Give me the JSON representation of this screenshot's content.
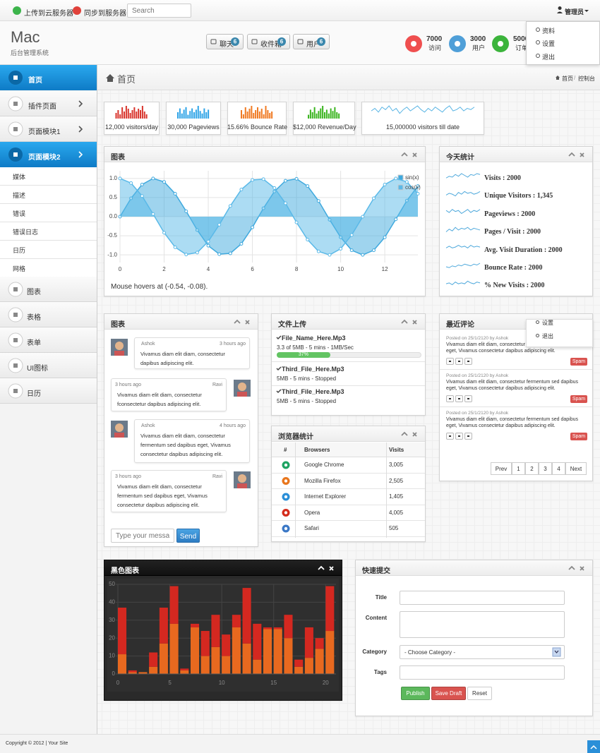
{
  "topbar": {
    "buttons": [
      "上传到云服务器",
      "同步到服务器"
    ],
    "search_placeholder": "Search",
    "user": "管理员"
  },
  "user_menu": [
    "资料",
    "设置",
    "退出"
  ],
  "header": {
    "logo": "Mac",
    "subtitle": "后台管理系统",
    "buttons": [
      {
        "label": "聊天",
        "badge": "6"
      },
      {
        "label": "收件箱",
        "badge": "6"
      },
      {
        "label": "用户",
        "badge": "6"
      }
    ],
    "stats": [
      {
        "value": "7000",
        "label": "访问",
        "color": "#ef4f4f"
      },
      {
        "value": "3000",
        "label": "用户",
        "color": "#4f9fd8"
      },
      {
        "value": "5000",
        "label": "订单",
        "color": "#3cb43c"
      }
    ]
  },
  "sidebar": {
    "main": [
      {
        "label": "首页",
        "active": true
      },
      {
        "label": "插件页面",
        "active": false
      },
      {
        "label": "页面模块1",
        "active": false
      },
      {
        "label": "页面模块2",
        "active": true
      }
    ],
    "submenu": [
      "媒体",
      "描述",
      "错误",
      "错误日志",
      "日历",
      "网格"
    ],
    "more": [
      "图表",
      "表格",
      "表单",
      "UI图标",
      "日历"
    ]
  },
  "page": {
    "title": "首页",
    "breadcrumb": [
      "首页",
      "控制台"
    ],
    "separator": "/"
  },
  "stat_boxes": [
    {
      "label": "12,000 visitors/day",
      "type": "bar",
      "color": "#d9362e",
      "values": [
        4,
        6,
        3,
        8,
        5,
        9,
        7,
        4,
        6,
        8,
        5,
        7,
        6,
        9,
        5,
        3
      ]
    },
    {
      "label": "30,000 Pageviews",
      "type": "bar",
      "color": "#2fa4e7",
      "values": [
        5,
        8,
        4,
        7,
        9,
        3,
        6,
        8,
        5,
        7,
        10,
        6,
        4,
        8,
        5,
        7
      ]
    },
    {
      "label": "15.66% Bounce Rate",
      "type": "bar",
      "color": "#f07b24",
      "values": [
        6,
        3,
        8,
        5,
        7,
        9,
        4,
        6,
        8,
        5,
        7,
        3,
        9,
        6,
        4,
        5
      ]
    },
    {
      "label": "$12,000 Revenue/Day",
      "type": "bar",
      "color": "#3cb521",
      "values": [
        3,
        7,
        5,
        9,
        4,
        6,
        8,
        10,
        5,
        7,
        4,
        8,
        6,
        9,
        5,
        4
      ]
    },
    {
      "label": "15,000000 visitors till date",
      "type": "line",
      "color": "#58b4e4",
      "values": [
        5,
        7,
        4,
        8,
        6,
        9,
        5,
        7,
        3,
        6,
        8,
        5,
        7,
        9,
        6,
        4,
        7,
        5,
        8,
        6,
        4,
        7,
        9,
        5,
        6,
        8,
        5,
        7,
        6,
        8
      ]
    }
  ],
  "today": {
    "title": "今天统计",
    "color": "#4fa9dc",
    "items": [
      {
        "label": "Visits : 2000",
        "values": [
          3,
          5,
          4,
          7,
          5,
          8,
          6,
          4,
          7,
          6,
          8,
          7
        ]
      },
      {
        "label": "Unique Visitors : 1,345",
        "values": [
          4,
          6,
          5,
          3,
          7,
          5,
          8,
          6,
          7,
          5,
          6,
          8
        ]
      },
      {
        "label": "Pageviews : 2000",
        "values": [
          6,
          4,
          7,
          5,
          6,
          3,
          5,
          7,
          4,
          6,
          5,
          7
        ]
      },
      {
        "label": "Pages / Visit : 2000",
        "values": [
          3,
          6,
          4,
          8,
          5,
          7,
          6,
          8,
          5,
          7,
          6,
          5
        ]
      },
      {
        "label": "Avg. Visit Duration : 2000",
        "values": [
          5,
          7,
          5,
          6,
          8,
          6,
          7,
          5,
          8,
          6,
          7,
          6
        ]
      },
      {
        "label": "Bounce Rate : 2000",
        "values": [
          4,
          3,
          5,
          4,
          6,
          5,
          7,
          6,
          5,
          7,
          6,
          8
        ]
      },
      {
        "label": "% New Visits : 2000",
        "values": [
          5,
          6,
          4,
          7,
          5,
          6,
          5,
          8,
          6,
          5,
          7,
          6
        ]
      }
    ]
  },
  "chat": {
    "title": "图表",
    "placeholder": "Type your message her",
    "send": "Send",
    "messages": [
      {
        "name": "Ashok",
        "time": "3 hours ago",
        "side": "left",
        "text": "Vivamus diam elit diam, consectetur dapibus adipiscing elit."
      },
      {
        "name": "Ravi",
        "time": "3 hours ago",
        "side": "right",
        "text": "Vivamus diam elit diam, consectetur fconsectetur dapibus adipiscing elit."
      },
      {
        "name": "Ashok",
        "time": "4 hours ago",
        "side": "left",
        "text": "Vivamus diam elit diam, consectetur fermentum sed dapibus eget, Vivamus consectetur dapibus adipiscing elit."
      },
      {
        "name": "Ravi",
        "time": "3 hours ago",
        "side": "right",
        "text": "Vivamus diam elit diam, consectetur fermentum sed dapibus eget, Vivamus consectetur dapibus adipiscing elit."
      }
    ]
  },
  "upload": {
    "title": "文件上传",
    "files": [
      {
        "name": "File_Name_Here.Mp3",
        "info": "3.3 of 5MB - 5 mins - 1MB/Sec",
        "progress": "37%"
      },
      {
        "name": "Third_File_Here.Mp3",
        "info": "5MB - 5 mins - Stopped"
      },
      {
        "name": "Third_File_Here.Mp3",
        "info": "5MB - 5 mins - Stopped"
      }
    ]
  },
  "browsers": {
    "title": "浏览器统计",
    "columns": [
      "#",
      "Browsers",
      "Visits"
    ],
    "rows": [
      [
        "Google Chrome",
        "3,005"
      ],
      [
        "Mozilla Firefox",
        "2,505"
      ],
      [
        "Internet Explorer",
        "1,405"
      ],
      [
        "Opera",
        "4,005"
      ],
      [
        "Safari",
        "505"
      ]
    ]
  },
  "comments": {
    "title": "最近评论",
    "menu": [
      "设置",
      "退出"
    ],
    "items": [
      {
        "meta": "Posted on 25/1/2120 by Ashok",
        "text": "Vivamus diam elit diam, consectetur fermentum sed dapibus eget, Vivamus consectetur dapibus adipiscing elit.",
        "flag": "Spam"
      },
      {
        "meta": "Posted on 25/1/2120 by Ashok",
        "text": "Vivamus diam elit diam, consectetur fermentum sed dapibus eget, Vivamus consectetur dapibus adipiscing elit.",
        "flag": "Spam"
      },
      {
        "meta": "Posted on 25/1/2120 by Ashok",
        "text": "Vivamus diam elit diam, consectetur fermentum sed dapibus eget, Vivamus consectetur dapibus adipiscing elit.",
        "flag": "Spam"
      }
    ],
    "pagination": [
      "Prev",
      "1",
      "2",
      "3",
      "4",
      "Next"
    ]
  },
  "form": {
    "title": "快速提交",
    "fields": [
      {
        "label": "Title",
        "kind": "input"
      },
      {
        "label": "Content",
        "kind": "textarea"
      },
      {
        "label": "Category",
        "kind": "select",
        "value": "- Choose Category -"
      },
      {
        "label": "Tags",
        "kind": "input"
      }
    ],
    "buttons": [
      {
        "label": "Publish",
        "color": "#5cb85c"
      },
      {
        "label": "Save Draft",
        "color": "#d9534f"
      },
      {
        "label": "Reset",
        "color": "#ffffff"
      }
    ]
  },
  "footer": {
    "text": "Copyright © 2012 | Your Site"
  },
  "chart_data": [
    {
      "type": "line",
      "title": "图表",
      "annotation": "Mouse hovers at (-0.54, -0.08).",
      "fill_to_zero": true,
      "legend": "ne",
      "grid": true,
      "x": [
        0,
        0.5,
        1,
        1.5,
        2,
        2.5,
        3,
        3.5,
        4,
        4.5,
        5,
        5.5,
        6,
        6.5,
        7,
        7.5,
        8,
        8.5,
        9,
        9.5,
        10,
        10.5,
        11,
        11.5,
        12,
        12.5,
        13,
        13.5
      ],
      "series": [
        {
          "name": "sin(x)",
          "color": "#3fa9de",
          "values": [
            0,
            0.48,
            0.84,
            1.0,
            0.91,
            0.6,
            0.14,
            -0.35,
            -0.76,
            -0.98,
            -0.96,
            -0.71,
            -0.28,
            0.22,
            0.66,
            0.94,
            0.99,
            0.8,
            0.41,
            -0.08,
            -0.54,
            -0.88,
            -1.0,
            -0.88,
            -0.54,
            -0.07,
            0.42,
            0.8
          ]
        },
        {
          "name": "cos(x)",
          "color": "#5ab9e8",
          "values": [
            1.0,
            0.88,
            0.54,
            0.07,
            -0.42,
            -0.8,
            -0.99,
            -0.94,
            -0.65,
            -0.21,
            0.28,
            0.71,
            0.96,
            0.98,
            0.75,
            0.35,
            -0.15,
            -0.6,
            -0.91,
            -1.0,
            -0.84,
            -0.48,
            0.0,
            0.48,
            0.84,
            1.0,
            0.91,
            0.6
          ]
        }
      ],
      "xlim": [
        0,
        13.5
      ],
      "ylim": [
        -1.2,
        1.2
      ],
      "xticks": [
        0,
        2,
        4,
        6,
        8,
        10,
        12
      ],
      "yticks": [
        {
          "value": -1,
          "label": "-1.0"
        },
        {
          "value": -0.5,
          "label": "-0.5"
        },
        {
          "value": 0,
          "label": "0.0"
        },
        {
          "value": 0.5,
          "label": "0.5"
        },
        {
          "value": 1,
          "label": "1.0"
        }
      ]
    },
    {
      "type": "stacked_bar",
      "title": "黑色图表",
      "grid": true,
      "x": [
        0,
        1,
        2,
        3,
        4,
        5,
        6,
        7,
        8,
        9,
        10,
        11,
        12,
        13,
        14,
        15,
        16,
        17,
        18,
        19,
        20
      ],
      "series": [
        {
          "color": "#e8691f",
          "values": [
            11,
            1,
            1,
            4,
            17,
            28,
            2,
            26,
            10,
            15,
            10,
            26,
            17,
            8,
            25,
            25,
            20,
            4,
            9,
            14,
            24
          ]
        },
        {
          "color": "#d42820",
          "values": [
            26,
            1,
            0,
            8,
            20,
            21,
            1,
            2,
            14,
            18,
            12,
            7,
            31,
            20,
            1,
            1,
            13,
            4,
            17,
            6,
            25
          ]
        }
      ],
      "xlim": [
        0,
        21
      ],
      "ylim": [
        0,
        50
      ],
      "xticks": [
        0,
        5,
        10,
        15,
        20
      ],
      "yticks": [
        0,
        10,
        20,
        30,
        40,
        50
      ]
    }
  ]
}
